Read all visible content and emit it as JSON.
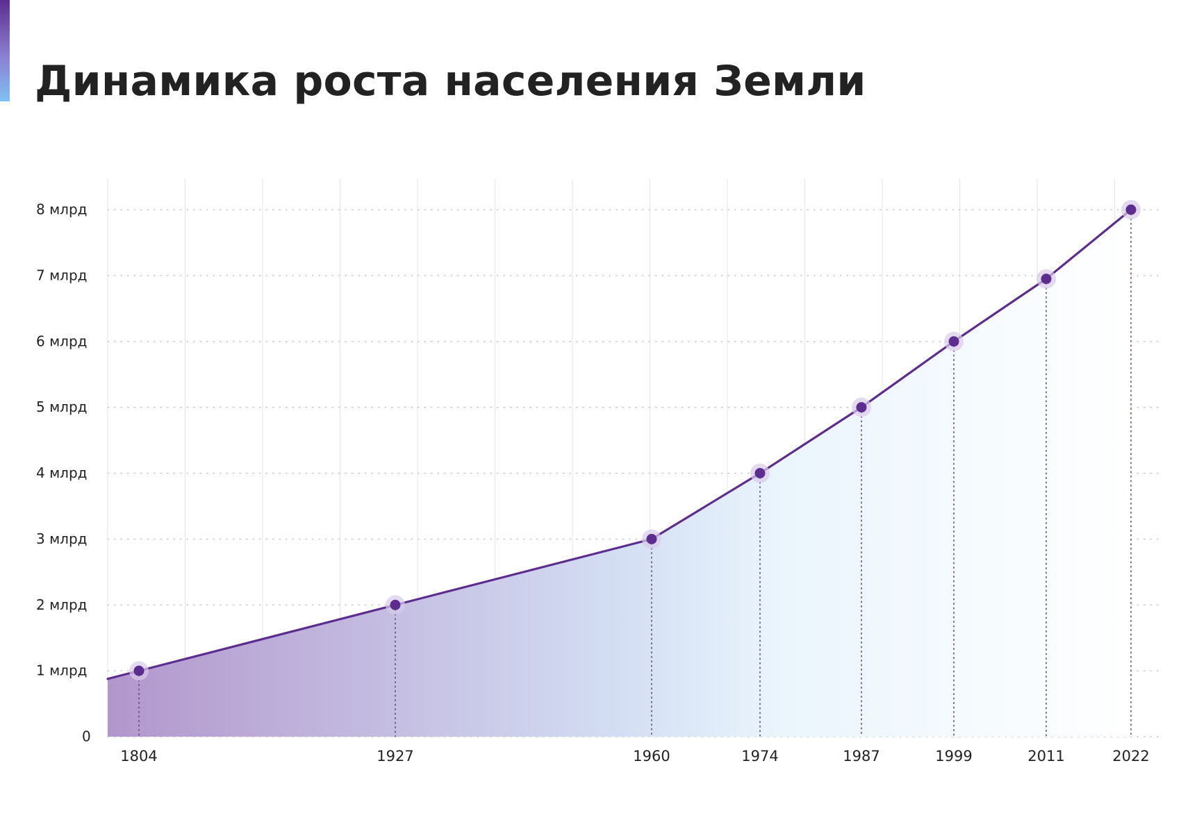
{
  "title": "Динамика роста населения Земли",
  "colors": {
    "line": "#5c2d8f",
    "accent_top": "#5c2d8f",
    "accent_bottom": "#7fc0f4",
    "area_left": "#b296cc",
    "area_mid": "#d3def3",
    "area_right": "#ffffff",
    "grid": "#e4e4e4",
    "text": "#222222"
  },
  "chart_data": {
    "type": "area",
    "title": "Динамика роста населения Земли",
    "xlabel": "",
    "ylabel": "",
    "x": [
      1804,
      1927,
      1960,
      1974,
      1987,
      1999,
      2011,
      2022
    ],
    "x_labels": [
      "1804",
      "1927",
      "1960",
      "1974",
      "1987",
      "1999",
      "2011",
      "2022"
    ],
    "series": [
      {
        "values": [
          1,
          2,
          3,
          4,
          5,
          6,
          6.95,
          8
        ]
      }
    ],
    "ylim": [
      0,
      8
    ],
    "y_ticks": [
      0,
      1,
      2,
      3,
      4,
      5,
      6,
      7,
      8
    ],
    "y_tick_labels": [
      "0",
      "1 млрд",
      "2 млрд",
      "3 млрд",
      "4 млрд",
      "5 млрд",
      "6 млрд",
      "7 млрд",
      "8 млрд"
    ],
    "grid": true,
    "legend": "none"
  }
}
